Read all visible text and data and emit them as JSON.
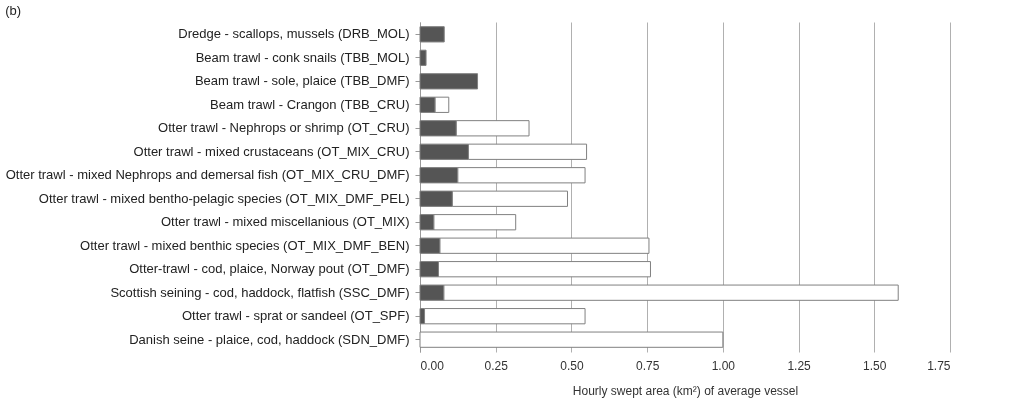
{
  "chart_data": {
    "type": "bar",
    "orientation": "horizontal",
    "stacked": true,
    "title": "(b)",
    "xlabel": "Hourly swept area (km²) of average vessel",
    "categories": [
      "Dredge - scallops, mussels (DRB_MOL)",
      "Beam trawl - conk snails (TBB_MOL)",
      "Beam trawl - sole, plaice (TBB_DMF)",
      "Beam trawl - Crangon (TBB_CRU)",
      "Otter trawl - Nephrops or shrimp (OT_CRU)",
      "Otter trawl - mixed crustaceans (OT_MIX_CRU)",
      "Otter trawl - mixed Nephrops and demersal fish (OT_MIX_CRU_DMF)",
      "Otter trawl - mixed bentho-pelagic species (OT_MIX_DMF_PEL)",
      "Otter trawl - mixed miscellanious (OT_MIX)",
      "Otter trawl - mixed benthic species (OT_MIX_DMF_BEN)",
      "Otter-trawl - cod, plaice, Norway pout (OT_DMF)",
      "Scottish seining - cod, haddock, flatfish (SSC_DMF)",
      "Otter trawl - sprat or sandeel (OT_SPF)",
      "Danish seine - plaice, cod, haddock (SDN_DMF)"
    ],
    "series": [
      {
        "color": "#555555",
        "values": [
          0.08,
          0.02,
          0.19,
          0.05,
          0.12,
          0.16,
          0.125,
          0.107,
          0.046,
          0.066,
          0.061,
          0.079,
          0.015,
          0
        ]
      },
      {
        "color": "#ffffff",
        "values": [
          0,
          0,
          0,
          0.045,
          0.24,
          0.39,
          0.42,
          0.38,
          0.27,
          0.69,
          0.7,
          1.5,
          0.53,
          1.0
        ]
      }
    ],
    "xlim": [
      0,
      1.75
    ],
    "xticks": [
      {
        "value": 0,
        "label": "0.00"
      },
      0.25,
      {
        "value": 0.5,
        "label": "0.50"
      },
      0.75,
      {
        "value": 1,
        "label": "1.00"
      },
      1.25,
      {
        "value": 1.5,
        "label": "1.50"
      },
      1.75
    ],
    "grid": "x"
  }
}
